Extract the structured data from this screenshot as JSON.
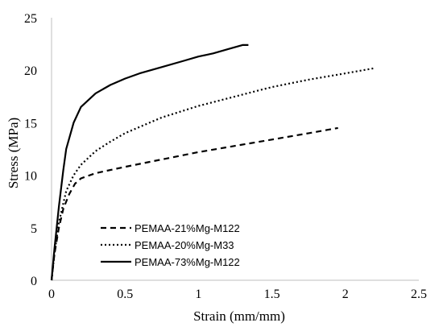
{
  "chart_data": {
    "type": "line",
    "title": "",
    "xlabel": "Strain (mm/mm)",
    "ylabel": "Stress (MPa)",
    "xlim": [
      0,
      2.5
    ],
    "ylim": [
      0,
      25
    ],
    "x_ticks": [
      "0",
      "0.5",
      "1",
      "1.5",
      "2",
      "2.5"
    ],
    "y_ticks": [
      "0",
      "5",
      "10",
      "15",
      "20",
      "25"
    ],
    "grid": false,
    "legend_position": "bottom-left",
    "series": [
      {
        "name": "PEMAA-21%Mg-M122",
        "style": "dashed",
        "color": "#000000",
        "points": [
          [
            0,
            0
          ],
          [
            0.02,
            2.5
          ],
          [
            0.05,
            5
          ],
          [
            0.08,
            6.8
          ],
          [
            0.12,
            8.2
          ],
          [
            0.16,
            9.2
          ],
          [
            0.2,
            9.7
          ],
          [
            0.3,
            10.2
          ],
          [
            0.5,
            10.8
          ],
          [
            0.75,
            11.5
          ],
          [
            1.0,
            12.2
          ],
          [
            1.25,
            12.8
          ],
          [
            1.5,
            13.4
          ],
          [
            1.75,
            14.0
          ],
          [
            1.95,
            14.5
          ]
        ]
      },
      {
        "name": "PEMAA-20%Mg-M33",
        "style": "dotted",
        "color": "#000000",
        "points": [
          [
            0,
            0
          ],
          [
            0.02,
            2.5
          ],
          [
            0.05,
            5.5
          ],
          [
            0.1,
            8.5
          ],
          [
            0.15,
            10.0
          ],
          [
            0.2,
            11.0
          ],
          [
            0.3,
            12.3
          ],
          [
            0.4,
            13.2
          ],
          [
            0.5,
            14.0
          ],
          [
            0.75,
            15.5
          ],
          [
            1.0,
            16.6
          ],
          [
            1.25,
            17.5
          ],
          [
            1.5,
            18.4
          ],
          [
            1.75,
            19.1
          ],
          [
            2.0,
            19.7
          ],
          [
            2.2,
            20.2
          ]
        ]
      },
      {
        "name": "PEMAA-73%Mg-M122",
        "style": "solid",
        "color": "#000000",
        "points": [
          [
            0,
            0
          ],
          [
            0.02,
            3
          ],
          [
            0.05,
            7
          ],
          [
            0.08,
            10.5
          ],
          [
            0.1,
            12.5
          ],
          [
            0.15,
            15.0
          ],
          [
            0.2,
            16.5
          ],
          [
            0.3,
            17.8
          ],
          [
            0.4,
            18.6
          ],
          [
            0.5,
            19.2
          ],
          [
            0.6,
            19.7
          ],
          [
            0.75,
            20.3
          ],
          [
            0.9,
            20.9
          ],
          [
            1.0,
            21.3
          ],
          [
            1.1,
            21.6
          ],
          [
            1.2,
            22.0
          ],
          [
            1.3,
            22.4
          ],
          [
            1.34,
            22.4
          ]
        ]
      }
    ]
  }
}
